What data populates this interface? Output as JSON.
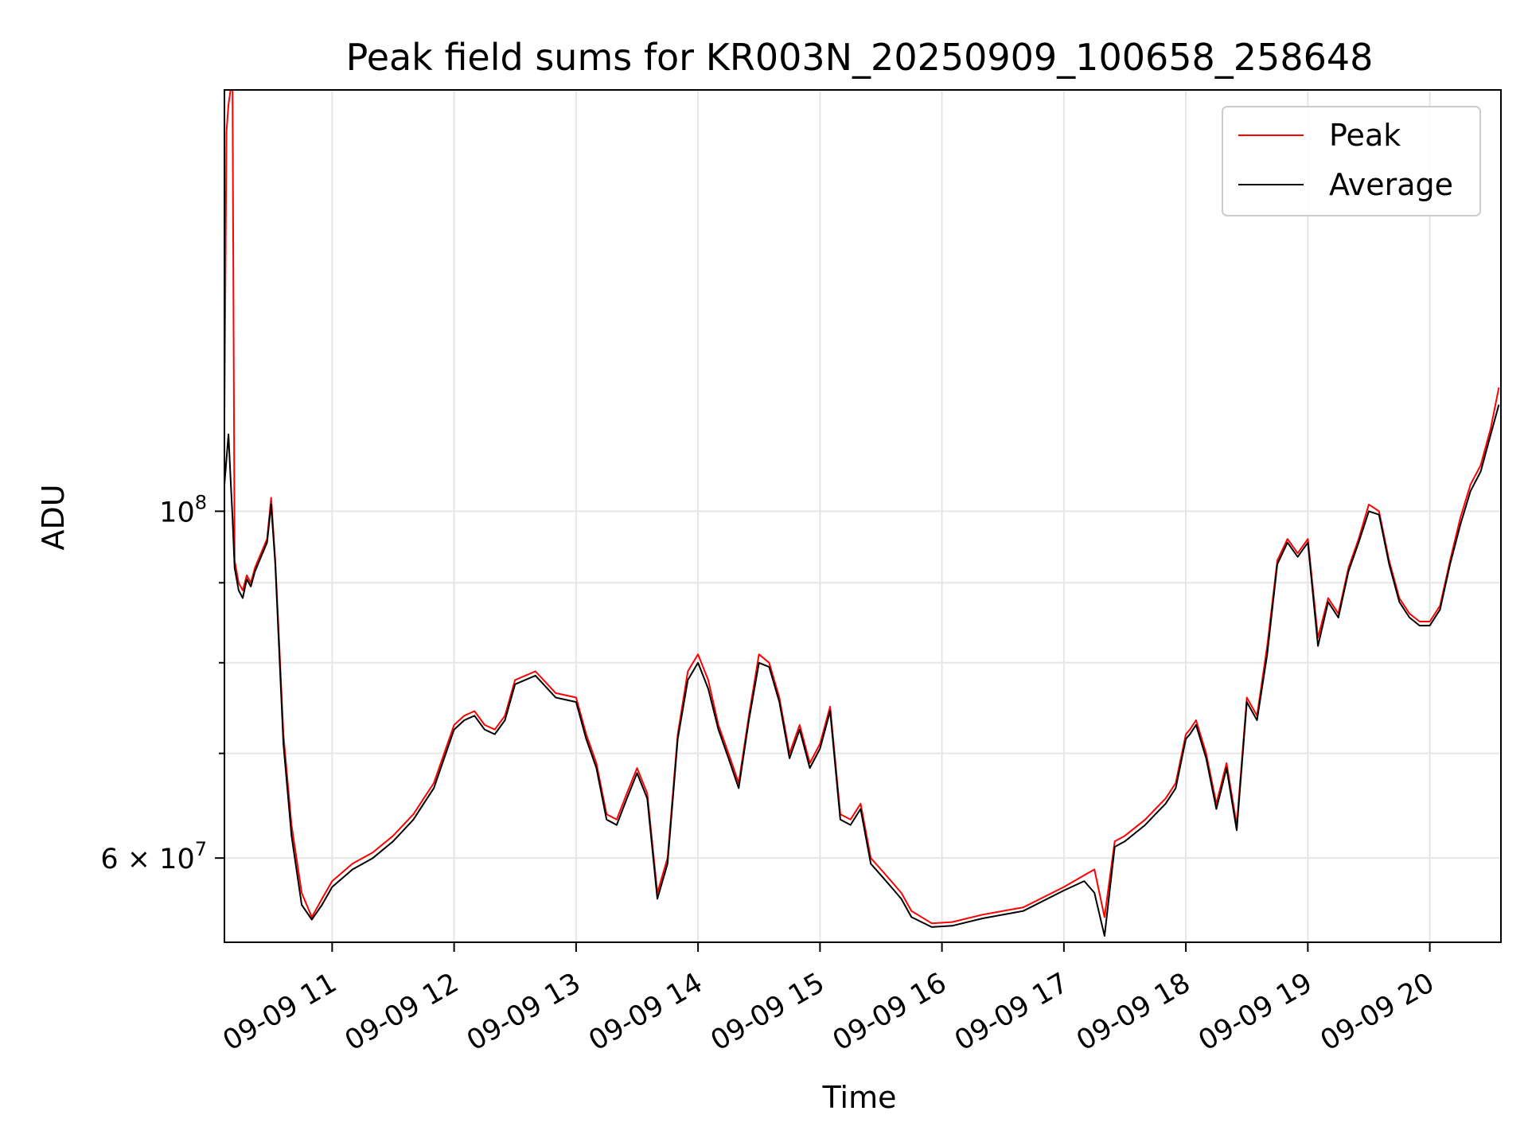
{
  "chart_data": {
    "type": "line",
    "title": "Peak field sums for KR003N_20250909_100658_258648",
    "xlabel": "Time",
    "ylabel": "ADU",
    "yscale": "log",
    "grid": true,
    "legend_position": "top-right",
    "xlim": [
      "2025-09-09 10:07",
      "2025-09-09 20:35"
    ],
    "ylim": [
      53000000,
      186000000
    ],
    "x_ticks": [
      {
        "value": "2025-09-09 11:00",
        "label": "09-09 11"
      },
      {
        "value": "2025-09-09 12:00",
        "label": "09-09 12"
      },
      {
        "value": "2025-09-09 13:00",
        "label": "09-09 13"
      },
      {
        "value": "2025-09-09 14:00",
        "label": "09-09 14"
      },
      {
        "value": "2025-09-09 15:00",
        "label": "09-09 15"
      },
      {
        "value": "2025-09-09 16:00",
        "label": "09-09 16"
      },
      {
        "value": "2025-09-09 17:00",
        "label": "09-09 17"
      },
      {
        "value": "2025-09-09 18:00",
        "label": "09-09 18"
      },
      {
        "value": "2025-09-09 19:00",
        "label": "09-09 19"
      },
      {
        "value": "2025-09-09 20:00",
        "label": "09-09 20"
      }
    ],
    "y_ticks": [
      {
        "value": 60000000,
        "label": "6 × 10",
        "exp": "7"
      },
      {
        "value": 100000000,
        "label": "10",
        "exp": "8"
      }
    ],
    "y_minor_ticks": [
      70000000,
      80000000,
      90000000
    ],
    "series": [
      {
        "name": "Peak",
        "color": "#ff0000",
        "x": [
          "10:07",
          "10:08",
          "10:09",
          "10:10",
          "10:11",
          "10:12",
          "10:14",
          "10:16",
          "10:18",
          "10:20",
          "10:22",
          "10:25",
          "10:28",
          "10:30",
          "10:32",
          "10:34",
          "10:36",
          "10:40",
          "10:45",
          "10:50",
          "10:55",
          "11:00",
          "11:10",
          "11:20",
          "11:30",
          "11:40",
          "11:45",
          "11:50",
          "12:00",
          "12:05",
          "12:10",
          "12:15",
          "12:20",
          "12:25",
          "12:30",
          "12:40",
          "12:50",
          "13:00",
          "13:05",
          "13:10",
          "13:15",
          "13:20",
          "13:25",
          "13:30",
          "13:35",
          "13:40",
          "13:45",
          "13:50",
          "13:55",
          "14:00",
          "14:05",
          "14:10",
          "14:15",
          "14:20",
          "14:25",
          "14:30",
          "14:35",
          "14:40",
          "14:45",
          "14:50",
          "14:55",
          "15:00",
          "15:05",
          "15:10",
          "15:15",
          "15:20",
          "15:25",
          "15:30",
          "15:35",
          "15:40",
          "15:45",
          "15:55",
          "16:05",
          "16:20",
          "16:40",
          "17:00",
          "17:10",
          "17:15",
          "17:20",
          "17:25",
          "17:30",
          "17:40",
          "17:45",
          "17:50",
          "17:55",
          "18:00",
          "18:02",
          "18:05",
          "18:10",
          "18:15",
          "18:20",
          "18:25",
          "18:30",
          "18:35",
          "18:40",
          "18:45",
          "18:50",
          "18:55",
          "19:00",
          "19:05",
          "19:10",
          "19:15",
          "19:20",
          "19:25",
          "19:30",
          "19:35",
          "19:40",
          "19:45",
          "19:50",
          "19:55",
          "20:00",
          "20:05",
          "20:10",
          "20:15",
          "20:20",
          "20:25",
          "20:30",
          "20:34"
        ],
        "y": [
          115000000,
          175000000,
          182000000,
          186000000,
          186000000,
          93000000,
          90000000,
          89000000,
          91000000,
          90000000,
          92000000,
          94000000,
          96000000,
          102000000,
          93000000,
          82000000,
          72000000,
          63000000,
          57000000,
          55000000,
          56500000,
          58000000,
          59500000,
          60500000,
          62000000,
          64000000,
          65500000,
          67000000,
          73000000,
          74000000,
          74500000,
          73000000,
          72500000,
          74000000,
          78000000,
          79000000,
          76500000,
          76000000,
          72000000,
          69000000,
          64000000,
          63500000,
          66000000,
          68500000,
          66000000,
          57000000,
          60000000,
          72000000,
          79000000,
          81000000,
          78000000,
          73000000,
          70000000,
          67000000,
          74000000,
          81000000,
          80000000,
          76000000,
          70000000,
          73000000,
          69000000,
          71000000,
          75000000,
          64000000,
          63500000,
          65000000,
          60000000,
          59000000,
          58000000,
          57000000,
          55500000,
          54500000,
          54600000,
          55200000,
          55800000,
          57500000,
          58500000,
          59000000,
          55000000,
          61500000,
          62000000,
          63500000,
          64500000,
          65500000,
          67000000,
          72000000,
          72500000,
          73500000,
          70000000,
          65000000,
          69000000,
          63000000,
          76000000,
          74000000,
          82000000,
          93000000,
          96000000,
          94000000,
          96000000,
          83000000,
          88000000,
          86000000,
          92000000,
          96000000,
          101000000,
          100000000,
          93000000,
          88000000,
          86000000,
          85000000,
          85000000,
          87000000,
          93000000,
          99000000,
          104000000,
          107000000,
          113000000,
          120000000
        ]
      },
      {
        "name": "Average",
        "color": "#000000",
        "x": [
          "10:07",
          "10:08",
          "10:09",
          "10:10",
          "10:11",
          "10:12",
          "10:14",
          "10:16",
          "10:18",
          "10:20",
          "10:22",
          "10:25",
          "10:28",
          "10:30",
          "10:32",
          "10:34",
          "10:36",
          "10:40",
          "10:45",
          "10:50",
          "10:55",
          "11:00",
          "11:10",
          "11:20",
          "11:30",
          "11:40",
          "11:45",
          "11:50",
          "12:00",
          "12:05",
          "12:10",
          "12:15",
          "12:20",
          "12:25",
          "12:30",
          "12:40",
          "12:50",
          "13:00",
          "13:05",
          "13:10",
          "13:15",
          "13:20",
          "13:25",
          "13:30",
          "13:35",
          "13:40",
          "13:45",
          "13:50",
          "13:55",
          "14:00",
          "14:05",
          "14:10",
          "14:15",
          "14:20",
          "14:25",
          "14:30",
          "14:35",
          "14:40",
          "14:45",
          "14:50",
          "14:55",
          "15:00",
          "15:05",
          "15:10",
          "15:15",
          "15:20",
          "15:25",
          "15:30",
          "15:35",
          "15:40",
          "15:45",
          "15:55",
          "16:05",
          "16:20",
          "16:40",
          "17:00",
          "17:10",
          "17:15",
          "17:20",
          "17:25",
          "17:30",
          "17:40",
          "17:45",
          "17:50",
          "17:55",
          "18:00",
          "18:02",
          "18:05",
          "18:10",
          "18:15",
          "18:20",
          "18:25",
          "18:30",
          "18:35",
          "18:40",
          "18:45",
          "18:50",
          "18:55",
          "19:00",
          "19:05",
          "19:10",
          "19:15",
          "19:20",
          "19:25",
          "19:30",
          "19:35",
          "19:40",
          "19:45",
          "19:50",
          "19:55",
          "20:00",
          "20:05",
          "20:10",
          "20:15",
          "20:20",
          "20:25",
          "20:30",
          "20:34"
        ],
        "y": [
          104000000,
          108000000,
          112000000,
          105000000,
          99000000,
          92000000,
          89000000,
          88000000,
          90500000,
          89500000,
          91500000,
          93500000,
          95500000,
          101000000,
          92500000,
          81000000,
          71000000,
          62000000,
          56000000,
          54800000,
          56000000,
          57500000,
          59000000,
          60000000,
          61500000,
          63500000,
          65000000,
          66500000,
          72500000,
          73500000,
          74000000,
          72500000,
          72000000,
          73500000,
          77500000,
          78500000,
          76000000,
          75500000,
          71500000,
          68500000,
          63500000,
          63000000,
          65500000,
          68000000,
          65500000,
          56500000,
          59500000,
          71500000,
          78000000,
          80000000,
          77000000,
          72500000,
          69500000,
          66500000,
          73500000,
          80000000,
          79500000,
          75500000,
          69500000,
          72500000,
          68500000,
          70500000,
          74500000,
          63500000,
          63000000,
          64500000,
          59500000,
          58500000,
          57500000,
          56500000,
          55000000,
          54200000,
          54300000,
          54900000,
          55500000,
          57200000,
          58000000,
          57000000,
          53500000,
          61000000,
          61500000,
          63000000,
          64000000,
          65000000,
          66500000,
          71500000,
          72000000,
          73000000,
          69500000,
          64500000,
          68500000,
          62500000,
          75500000,
          73500000,
          81000000,
          92500000,
          95500000,
          93500000,
          95500000,
          82000000,
          87500000,
          85500000,
          91500000,
          95500000,
          100000000,
          99500000,
          92500000,
          87500000,
          85500000,
          84500000,
          84500000,
          86500000,
          92500000,
          98000000,
          103000000,
          106000000,
          112000000,
          117000000
        ]
      }
    ]
  }
}
